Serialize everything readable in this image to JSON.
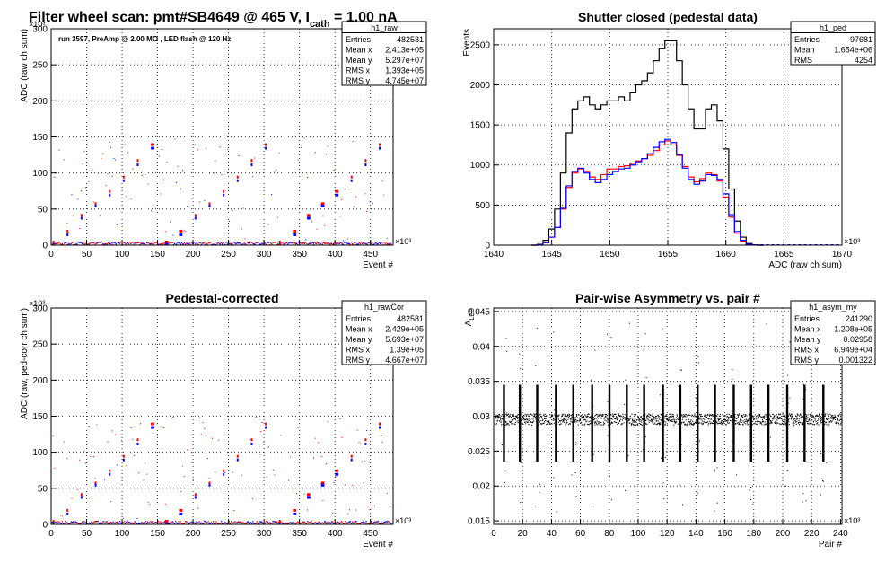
{
  "figure": {
    "main_title_prefix": "Filter wheel scan: pmt#SB4649 @   465 V, I",
    "main_title_sub": "cath",
    "main_title_suffix": " = 1.00 nA"
  },
  "colors": {
    "red": "#ff0000",
    "blue": "#0000ff",
    "black": "#000000"
  },
  "chart_data": [
    {
      "id": "raw",
      "type": "scatter",
      "title": "",
      "annotation": "run 3597, PreAmp @ 2.00 MΩ , LED flash @  120 Hz",
      "xlabel": "Event #",
      "ylabel": "ADC (raw ch sum)",
      "x_multiplier": "×10³",
      "y_multiplier": "×10³",
      "xlim": [
        0,
        482
      ],
      "ylim": [
        0,
        300
      ],
      "xticks": [
        0,
        50,
        100,
        150,
        200,
        250,
        300,
        350,
        400,
        450
      ],
      "yticks": [
        0,
        50,
        100,
        150,
        200,
        250,
        300
      ],
      "grid": true,
      "pattern": {
        "cycle_events": 20,
        "red_levels": [
          5,
          20,
          42,
          58,
          75,
          95,
          118,
          140
        ],
        "blue_levels": [
          2,
          15,
          38,
          55,
          70,
          90,
          112,
          135
        ],
        "slow_levels": [
          25,
          60,
          100,
          148
        ]
      },
      "stats": {
        "name": "h1_raw",
        "rows": [
          [
            "Entries",
            "482581"
          ],
          [
            "Mean x",
            "2.413e+05"
          ],
          [
            "Mean y",
            "5.297e+07"
          ],
          [
            "RMS x",
            "1.393e+05"
          ],
          [
            "RMS y",
            "4.745e+07"
          ]
        ]
      }
    },
    {
      "id": "ped",
      "type": "line",
      "title": "Shutter closed (pedestal data)",
      "xlabel": "ADC (raw ch sum)",
      "ylabel": "Events",
      "x_multiplier": "×10³",
      "xlim": [
        1640,
        1670
      ],
      "ylim": [
        0,
        2700
      ],
      "xticks": [
        1640,
        1645,
        1650,
        1655,
        1660,
        1665,
        1670
      ],
      "yticks": [
        0,
        500,
        1000,
        1500,
        2000,
        2500
      ],
      "grid": true,
      "x": [
        1643.5,
        1644,
        1644.5,
        1645,
        1645.5,
        1646,
        1646.5,
        1647,
        1647.5,
        1648,
        1648.5,
        1649,
        1649.5,
        1650,
        1650.5,
        1651,
        1651.5,
        1652,
        1652.5,
        1653,
        1653.5,
        1654,
        1654.5,
        1655,
        1655.5,
        1656,
        1656.5,
        1657,
        1657.5,
        1658,
        1658.5,
        1659,
        1659.5,
        1660,
        1660.5,
        1661,
        1661.5,
        1662,
        1662.5,
        1663
      ],
      "series": [
        {
          "color": "black",
          "values": [
            0,
            10,
            60,
            200,
            450,
            900,
            1400,
            1700,
            1800,
            1850,
            1750,
            1700,
            1750,
            1800,
            1800,
            1850,
            1800,
            1900,
            2000,
            2050,
            2150,
            2300,
            2450,
            2550,
            2550,
            2300,
            2000,
            1700,
            1450,
            1450,
            1700,
            1750,
            1550,
            1200,
            700,
            300,
            100,
            20,
            5,
            0
          ]
        },
        {
          "color": "red",
          "values": [
            0,
            5,
            30,
            100,
            220,
            450,
            720,
            900,
            950,
            920,
            850,
            820,
            880,
            950,
            950,
            980,
            990,
            1020,
            1050,
            1080,
            1120,
            1180,
            1250,
            1300,
            1250,
            1120,
            980,
            850,
            790,
            830,
            900,
            880,
            800,
            600,
            350,
            150,
            50,
            10,
            3,
            0
          ]
        },
        {
          "color": "blue",
          "values": [
            0,
            5,
            30,
            100,
            220,
            460,
            740,
            920,
            960,
            900,
            820,
            780,
            820,
            880,
            920,
            950,
            960,
            1000,
            1040,
            1080,
            1140,
            1220,
            1290,
            1320,
            1280,
            1130,
            960,
            820,
            760,
            800,
            880,
            870,
            820,
            640,
            380,
            170,
            60,
            12,
            3,
            0
          ]
        }
      ],
      "stats": {
        "name": "h1_ped",
        "rows": [
          [
            "Entries",
            "97681"
          ],
          [
            "Mean",
            "1.654e+06"
          ],
          [
            "RMS",
            "4254"
          ]
        ]
      }
    },
    {
      "id": "rawCor",
      "type": "scatter",
      "title": "Pedestal-corrected",
      "xlabel": "Event #",
      "ylabel": "ADC (raw, ped-corr ch sum)",
      "x_multiplier": "×10³",
      "y_multiplier": "×10³",
      "xlim": [
        0,
        482
      ],
      "ylim": [
        0,
        300
      ],
      "xticks": [
        0,
        50,
        100,
        150,
        200,
        250,
        300,
        350,
        400,
        450
      ],
      "yticks": [
        0,
        50,
        100,
        150,
        200,
        250,
        300
      ],
      "grid": true,
      "pattern": {
        "cycle_events": 20,
        "red_levels": [
          5,
          20,
          42,
          58,
          75,
          95,
          118,
          140
        ],
        "blue_levels": [
          2,
          15,
          38,
          55,
          70,
          90,
          112,
          135
        ],
        "slow_levels": [
          25,
          60,
          100,
          148
        ]
      },
      "stats": {
        "name": "h1_rawCor",
        "rows": [
          [
            "Entries",
            "482581"
          ],
          [
            "Mean x",
            "2.429e+05"
          ],
          [
            "Mean y",
            "5.693e+07"
          ],
          [
            "RMS x",
            "1.39e+05"
          ],
          [
            "RMS y",
            "4.667e+07"
          ]
        ]
      }
    },
    {
      "id": "asym",
      "type": "scatter",
      "title": "Pair-wise Asymmetry vs. pair #",
      "xlabel": "Pair #",
      "ylabel": "A",
      "ylabel_sub": "LED",
      "x_multiplier": "×10³",
      "xlim": [
        0,
        241
      ],
      "ylim": [
        0.0145,
        0.0455
      ],
      "xticks": [
        0,
        20,
        40,
        60,
        80,
        100,
        120,
        140,
        160,
        180,
        200,
        220,
        240
      ],
      "yticks": [
        0.015,
        0.02,
        0.025,
        0.03,
        0.035,
        0.04,
        0.045
      ],
      "ytick_labels": [
        "0.015",
        "0.02",
        "0.025",
        "0.03",
        "0.035",
        "0.04",
        "0.045"
      ],
      "grid": true,
      "band_center": 0.0296,
      "band_halfwidth": 0.0008,
      "spike_x": [
        7,
        18,
        30,
        43,
        55,
        68,
        80,
        92,
        104,
        117,
        129,
        141,
        153,
        166,
        178,
        190,
        203,
        215,
        228
      ],
      "spike_span": [
        0.0235,
        0.0345
      ],
      "stats": {
        "name": "h1_asym_my",
        "rows": [
          [
            "Entries",
            "241290"
          ],
          [
            "Mean x",
            "1.208e+05"
          ],
          [
            "Mean y",
            "0.02958"
          ],
          [
            "RMS x",
            "6.949e+04"
          ],
          [
            "RMS y",
            "0.001322"
          ]
        ]
      }
    }
  ]
}
